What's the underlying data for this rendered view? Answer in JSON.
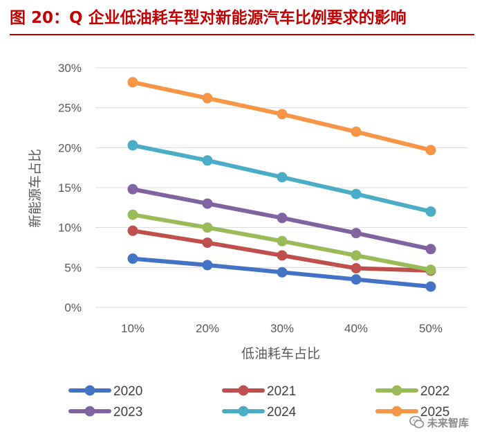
{
  "title": "图 20：Q 企业低油耗车型对新能源汽车比例要求的影响",
  "watermark": {
    "text": "未来智库",
    "icon": "wechat-icon"
  },
  "chart_data": {
    "type": "line",
    "title": "图 20：Q 企业低油耗车型对新能源汽车比例要求的影响",
    "xlabel": "低油耗车占比",
    "ylabel": "新能源车占比",
    "categories": [
      "10%",
      "20%",
      "30%",
      "40%",
      "50%"
    ],
    "yticks": [
      "0%",
      "5%",
      "10%",
      "15%",
      "20%",
      "25%",
      "30%"
    ],
    "ylim": [
      0,
      30
    ],
    "grid": true,
    "legend": "bottom",
    "series": [
      {
        "name": "2020",
        "color": "#4472c4",
        "values": [
          6.1,
          5.3,
          4.4,
          3.5,
          2.6
        ]
      },
      {
        "name": "2021",
        "color": "#c0504d",
        "values": [
          9.6,
          8.1,
          6.5,
          4.9,
          4.6
        ]
      },
      {
        "name": "2022",
        "color": "#9bbb59",
        "values": [
          11.6,
          10.0,
          8.3,
          6.5,
          4.7
        ]
      },
      {
        "name": "2023",
        "color": "#8064a2",
        "values": [
          14.8,
          13.0,
          11.2,
          9.3,
          7.3
        ]
      },
      {
        "name": "2024",
        "color": "#4bacc6",
        "values": [
          20.3,
          18.4,
          16.3,
          14.2,
          12.0
        ]
      },
      {
        "name": "2025",
        "color": "#f79646",
        "values": [
          28.2,
          26.2,
          24.2,
          22.0,
          19.7
        ]
      }
    ]
  }
}
